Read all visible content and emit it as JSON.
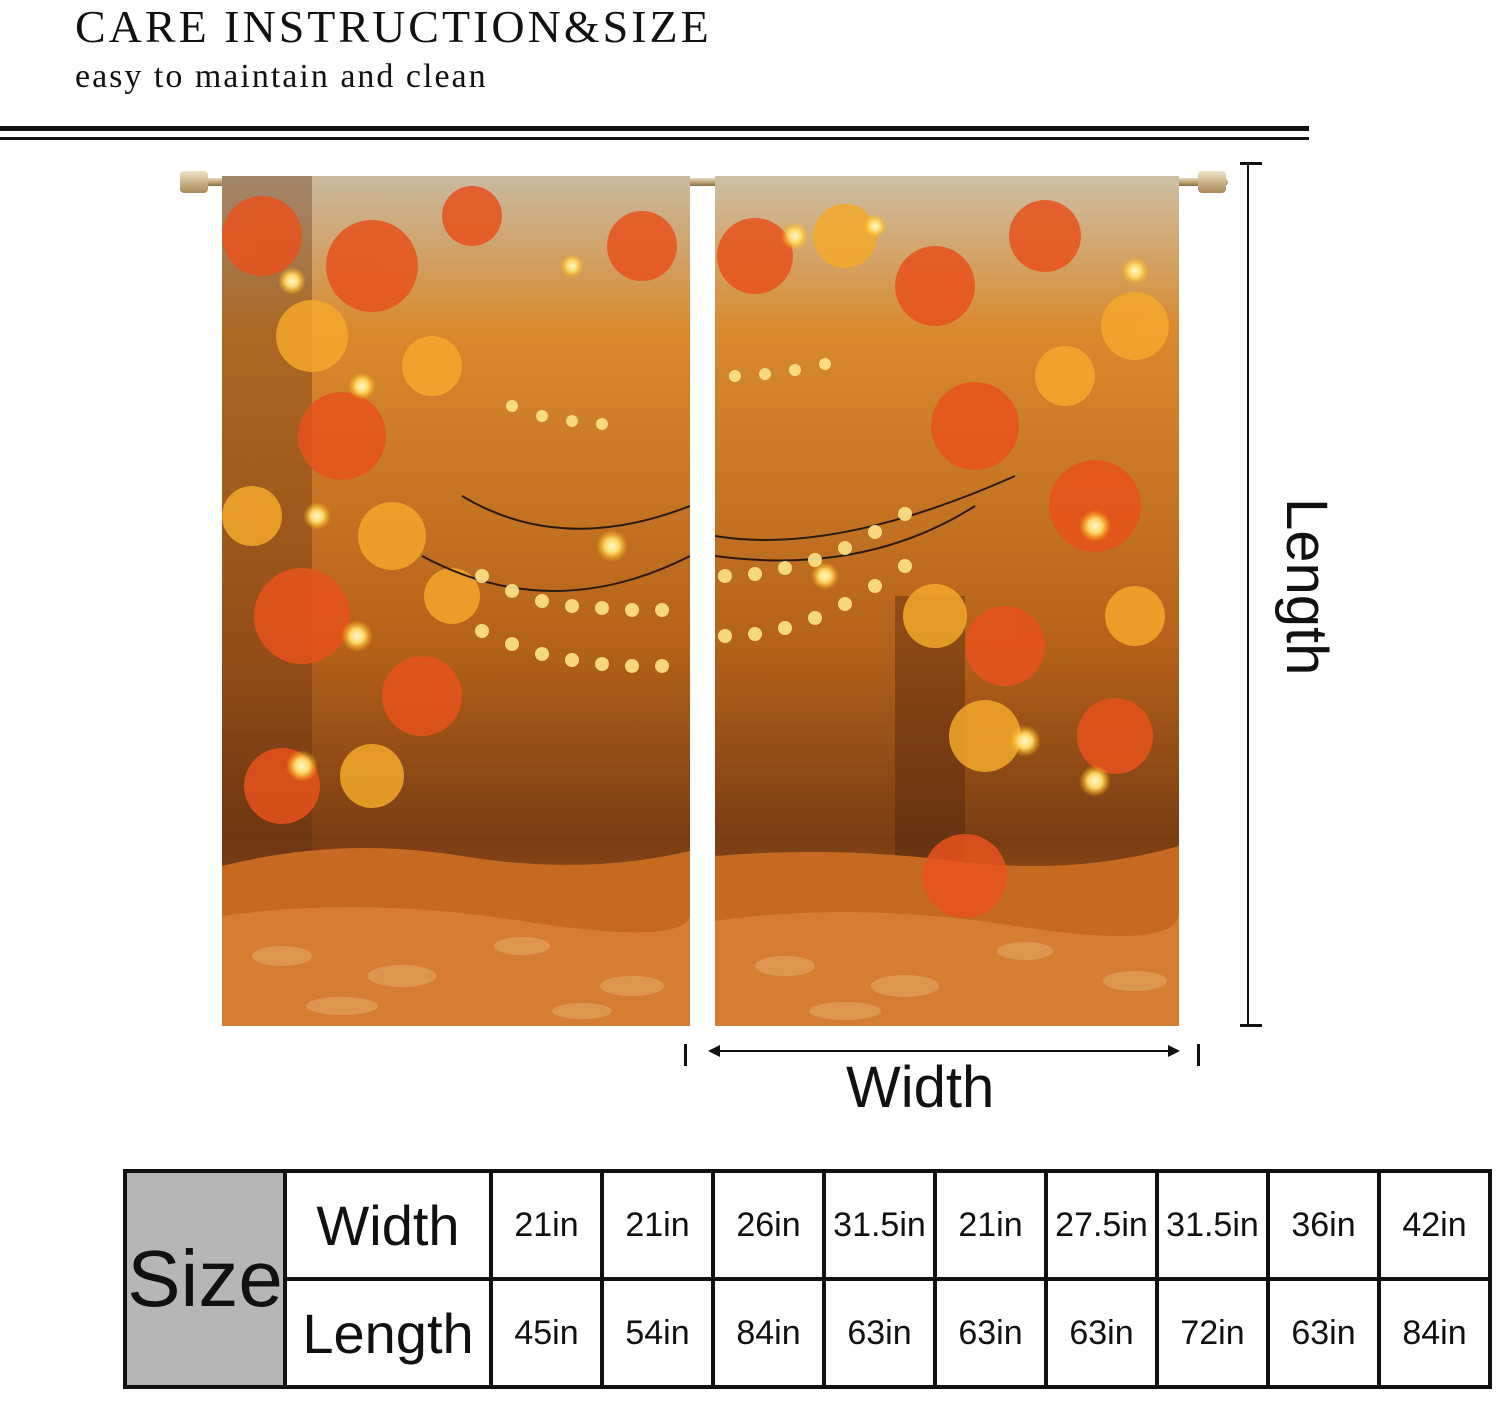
{
  "header": {
    "title": "CARE INSTRUCTION&SIZE",
    "subtitle": "easy to maintain and clean"
  },
  "diagram": {
    "length_label": "Length",
    "width_label": "Width"
  },
  "size_table": {
    "label": "Size",
    "width_label": "Width",
    "length_label": "Length",
    "widths": [
      "21in",
      "21in",
      "26in",
      "31.5in",
      "21in",
      "27.5in",
      "31.5in",
      "36in",
      "42in"
    ],
    "lengths": [
      "45in",
      "54in",
      "84in",
      "63in",
      "63in",
      "63in",
      "72in",
      "63in",
      "84in"
    ]
  }
}
